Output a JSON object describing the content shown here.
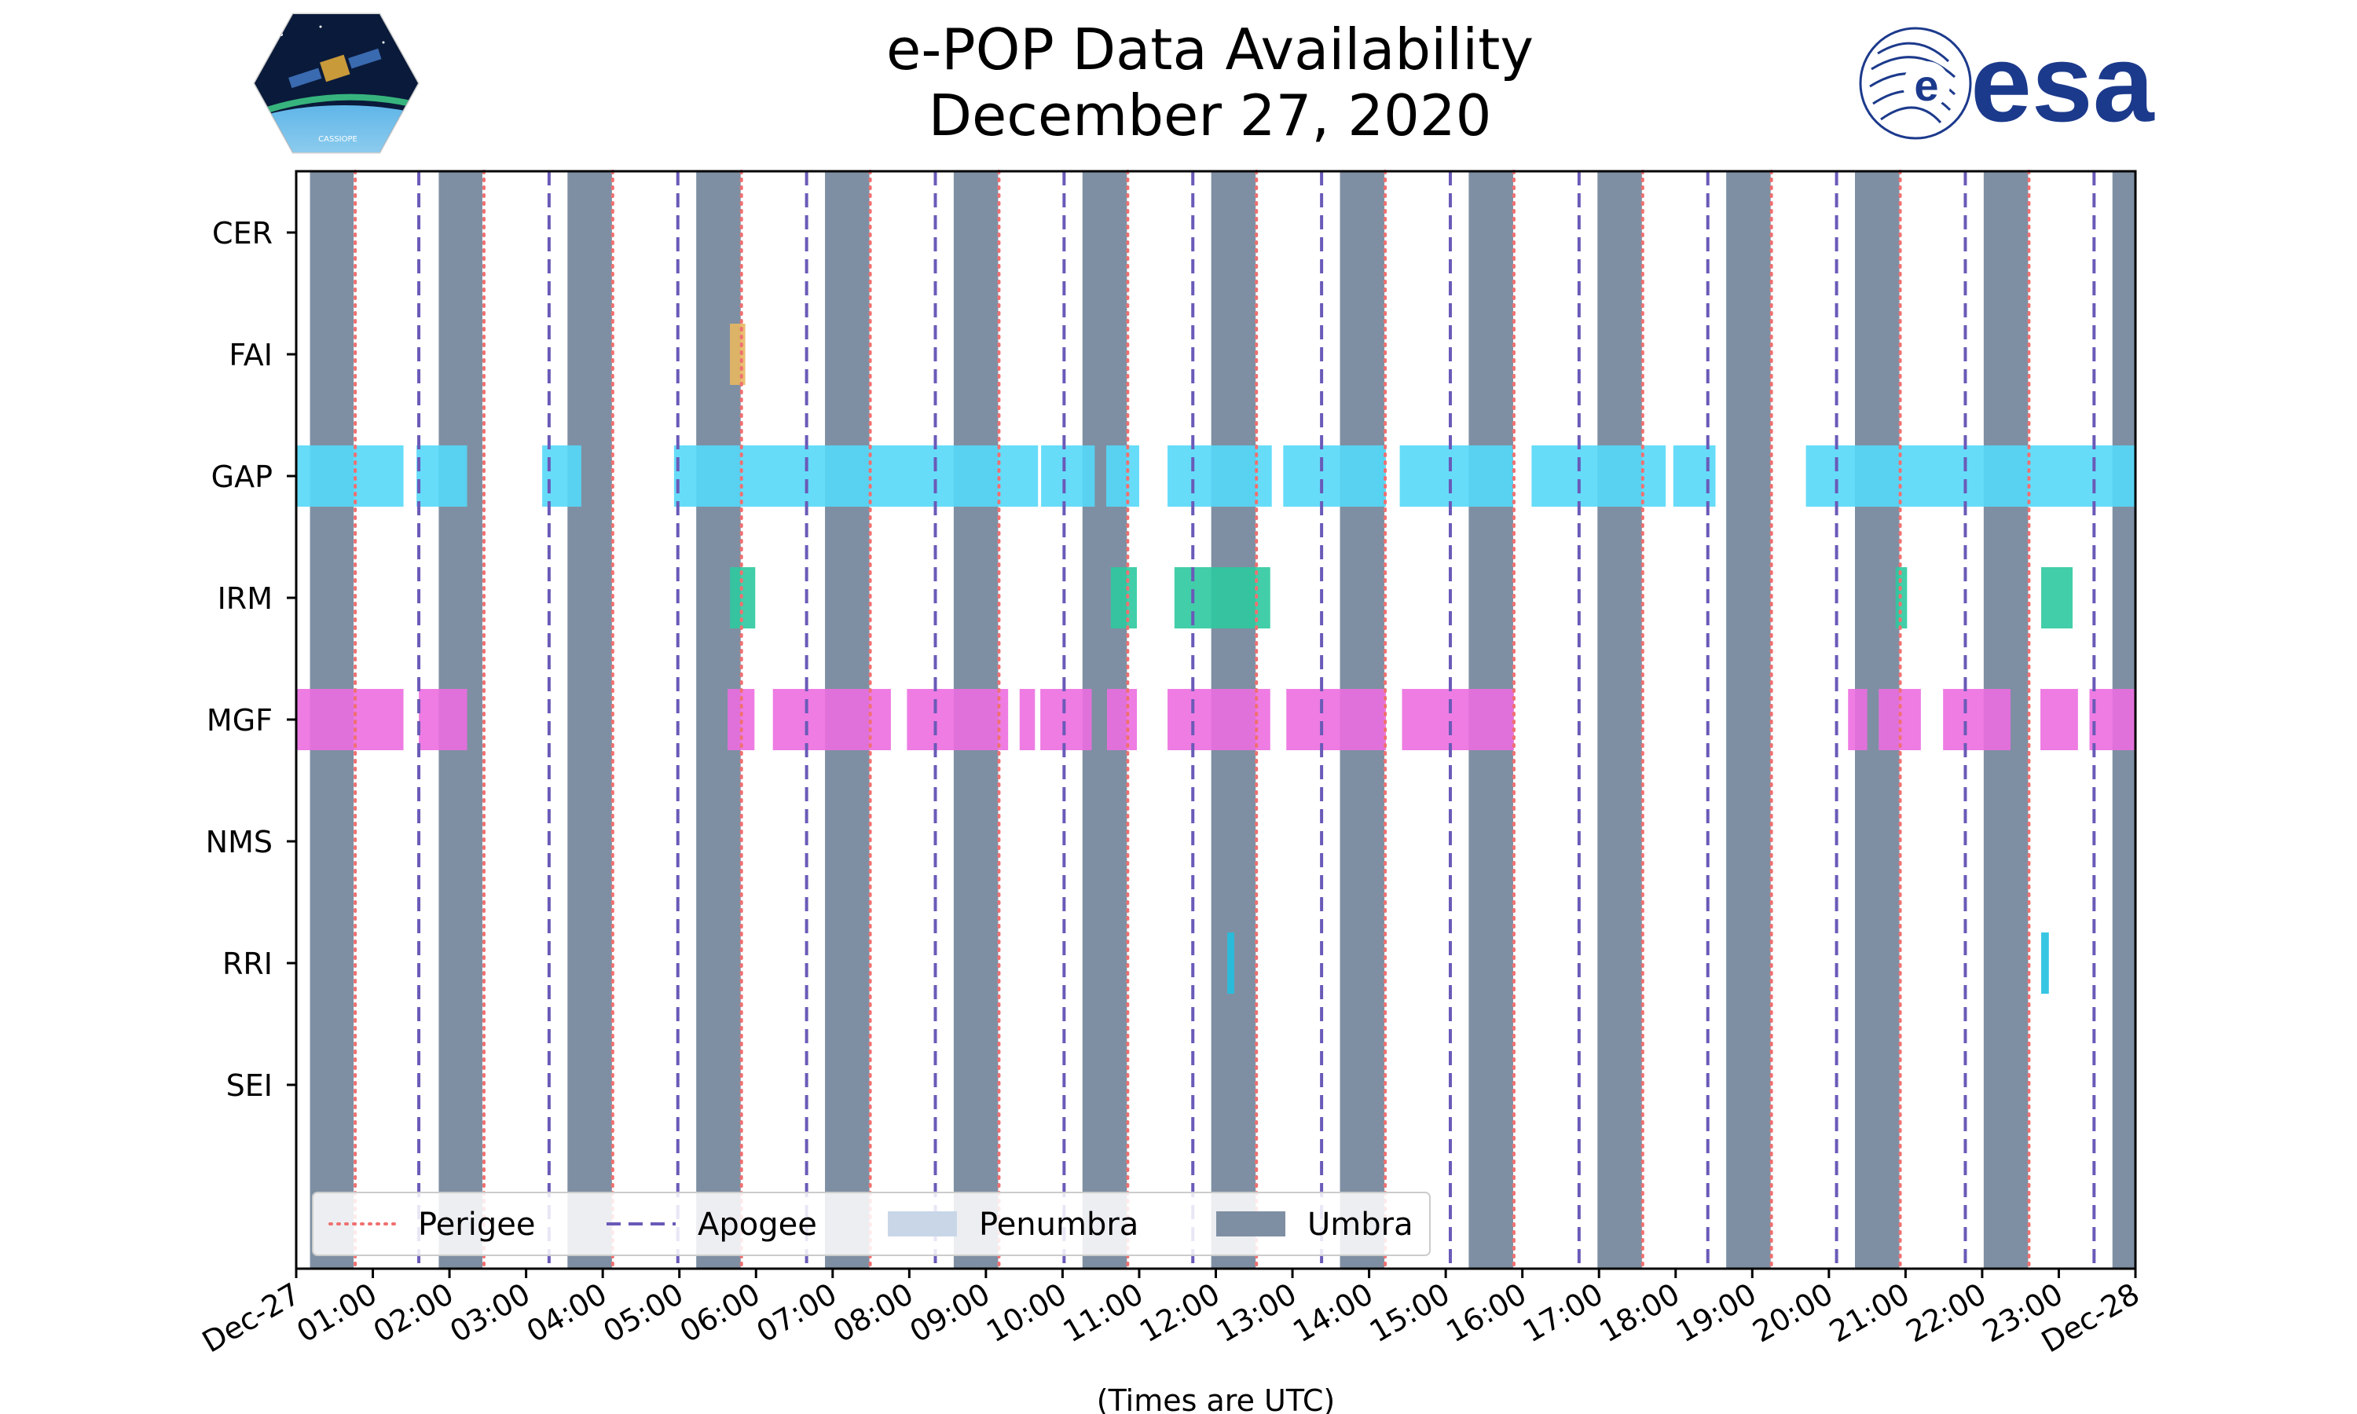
{
  "chart_data": {
    "type": "timeline",
    "title": "e-POP Data Availability",
    "subtitle": "December 27, 2020",
    "xlabel": "(Times are UTC)",
    "x_unit": "hours since 2020-12-27 00:00 UTC",
    "xlim": [
      0,
      24
    ],
    "x_tick_labels": [
      "Dec-27",
      "01:00",
      "02:00",
      "03:00",
      "04:00",
      "05:00",
      "06:00",
      "07:00",
      "08:00",
      "09:00",
      "10:00",
      "11:00",
      "12:00",
      "13:00",
      "14:00",
      "15:00",
      "16:00",
      "17:00",
      "18:00",
      "19:00",
      "20:00",
      "21:00",
      "22:00",
      "23:00",
      "Dec-28"
    ],
    "instruments": [
      "CER",
      "FAI",
      "GAP",
      "IRM",
      "MGF",
      "NMS",
      "RRI",
      "SEI"
    ],
    "series": [
      {
        "name": "CER",
        "color": "#f0a0b0",
        "intervals": []
      },
      {
        "name": "FAI",
        "color": "#e8b860",
        "intervals": [
          [
            5.66,
            5.86
          ]
        ]
      },
      {
        "name": "GAP",
        "color": "#55d8f8",
        "intervals": [
          [
            0.0,
            1.4
          ],
          [
            1.57,
            2.23
          ],
          [
            3.21,
            3.72
          ],
          [
            4.93,
            9.68
          ],
          [
            9.72,
            10.42
          ],
          [
            10.57,
            11.0
          ],
          [
            11.37,
            12.73
          ],
          [
            12.88,
            14.22
          ],
          [
            14.4,
            15.88
          ],
          [
            16.12,
            17.87
          ],
          [
            17.97,
            18.52
          ],
          [
            19.7,
            24.0
          ]
        ]
      },
      {
        "name": "IRM",
        "color": "#2ec9a0",
        "intervals": [
          [
            5.66,
            5.99
          ],
          [
            10.63,
            10.97
          ],
          [
            11.46,
            12.71
          ],
          [
            20.87,
            21.02
          ],
          [
            22.77,
            23.18
          ]
        ]
      },
      {
        "name": "MGF",
        "color": "#ec6ee0",
        "intervals": [
          [
            0.0,
            1.4
          ],
          [
            1.6,
            2.23
          ],
          [
            5.63,
            5.98
          ],
          [
            6.22,
            7.76
          ],
          [
            7.97,
            9.29
          ],
          [
            9.44,
            9.64
          ],
          [
            9.71,
            10.38
          ],
          [
            10.58,
            10.97
          ],
          [
            11.37,
            12.71
          ],
          [
            12.92,
            14.22
          ],
          [
            14.43,
            15.89
          ],
          [
            20.25,
            20.5
          ],
          [
            20.65,
            21.2
          ],
          [
            21.49,
            22.37
          ],
          [
            22.76,
            23.25
          ],
          [
            23.4,
            24.0
          ]
        ]
      },
      {
        "name": "NMS",
        "color": "#9090ff",
        "intervals": []
      },
      {
        "name": "RRI",
        "color": "#22c0e0",
        "intervals": [
          [
            12.15,
            12.24
          ],
          [
            22.77,
            22.87
          ]
        ]
      },
      {
        "name": "SEI",
        "color": "#c0c040",
        "intervals": []
      }
    ],
    "umbra": [
      [
        0.18,
        0.75
      ],
      [
        1.86,
        2.43
      ],
      [
        3.54,
        4.12
      ],
      [
        5.22,
        5.8
      ],
      [
        6.9,
        7.48
      ],
      [
        8.58,
        9.16
      ],
      [
        10.26,
        10.84
      ],
      [
        11.94,
        12.52
      ],
      [
        13.62,
        14.2
      ],
      [
        15.3,
        15.88
      ],
      [
        16.98,
        17.56
      ],
      [
        18.66,
        19.24
      ],
      [
        20.34,
        20.92
      ],
      [
        22.02,
        22.6
      ],
      [
        23.7,
        24.0
      ]
    ],
    "penumbra": [],
    "perigee": [
      0.77,
      2.45,
      4.13,
      5.81,
      7.49,
      9.17,
      10.85,
      12.53,
      14.21,
      15.89,
      17.57,
      19.25,
      20.93,
      22.61
    ],
    "apogee": [
      1.6,
      3.3,
      4.98,
      6.66,
      8.34,
      10.02,
      11.7,
      13.38,
      15.06,
      16.74,
      18.42,
      20.1,
      21.78,
      23.46
    ],
    "legend": {
      "position": "bottom-left",
      "entries": [
        {
          "label": "Perigee",
          "style": "dotted",
          "color": "#f07070"
        },
        {
          "label": "Apogee",
          "style": "dashed",
          "color": "#6a5ab8"
        },
        {
          "label": "Penumbra",
          "style": "patch",
          "color": "#c8d6e8"
        },
        {
          "label": "Umbra",
          "style": "patch",
          "color": "#7f8fa3"
        }
      ]
    }
  },
  "logos": {
    "left": {
      "name": "CASSIOPE",
      "caption": "CASSIOPE"
    },
    "right": {
      "name": "esa",
      "text": "esa",
      "color": "#1c3a8c"
    }
  }
}
